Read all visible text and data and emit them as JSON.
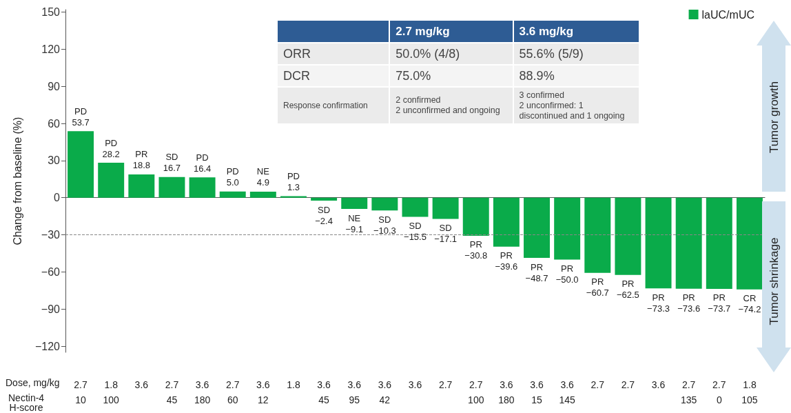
{
  "chart_data": {
    "type": "bar",
    "categories": [
      "2.7\n10",
      "1.8\n100",
      "3.6\n",
      "2.7\n45",
      "3.6\n180",
      "2.7\n60",
      "3.6\n12",
      "1.8\n",
      "3.6\n45",
      "3.6\n95",
      "3.6\n42",
      "3.6\n",
      "2.7\n",
      "2.7\n100",
      "3.6\n180",
      "3.6\n15",
      "3.6\n145",
      "2.7\n",
      "2.7\n",
      "3.6\n",
      "2.7\n135",
      "2.7\n0",
      "1.8\n105"
    ],
    "series": [
      {
        "name": "laUC/mUC",
        "color": "#0aab4a",
        "values": [
          53.7,
          28.2,
          18.8,
          16.7,
          16.4,
          5.0,
          4.9,
          1.3,
          -2.4,
          -9.1,
          -10.3,
          -15.5,
          -17.1,
          -30.8,
          -39.6,
          -48.7,
          -50.0,
          -60.7,
          -62.5,
          -73.3,
          -73.6,
          -73.7,
          -74.2
        ],
        "value_labels": [
          "PD\n53.7",
          "PD\n28.2",
          "PR\n18.8",
          "SD\n16.7",
          "PD\n16.4",
          "PD\n5.0",
          "NE\n4.9",
          "PD\n1.3",
          "SD\n−2.4",
          "NE\n−9.1",
          "SD\n−10.3",
          "SD\n−15.5",
          "SD\n−17.1",
          "PR\n−30.8",
          "PR\n−39.6",
          "PR\n−48.7",
          "PR\n−50.0",
          "PR\n−60.7",
          "PR\n−62.5",
          "PR\n−73.3",
          "PR\n−73.6",
          "PR\n−73.7",
          "CR\n−74.2"
        ]
      }
    ],
    "ylabel": "Change from baseline (%)",
    "ylim": [
      -125,
      152
    ],
    "yticks": [
      -120,
      -90,
      -60,
      -30,
      0,
      30,
      60,
      90,
      120,
      150
    ],
    "ref_lines": [
      {
        "axis": "y",
        "value": -30,
        "color": "#888888",
        "line_style": "dashed"
      }
    ],
    "grid": false,
    "legend": "top right",
    "annotations": [
      "Dose, mg/kg",
      "Nectin-4\nH-score",
      "Tumor growth",
      "Tumor shrinkage",
      "2.7 mg/kg",
      "3.6 mg/kg",
      "ORR",
      "50.0% (4/8)",
      "55.6% (5/9)",
      "DCR",
      "75.0%",
      "88.9%",
      "Response confirmation",
      "2 confirmed\n2 unconfirmed and ongoing",
      "3 confirmed\n2 unconfirmed: 1\ndiscontinued and 1 ongoing"
    ]
  }
}
